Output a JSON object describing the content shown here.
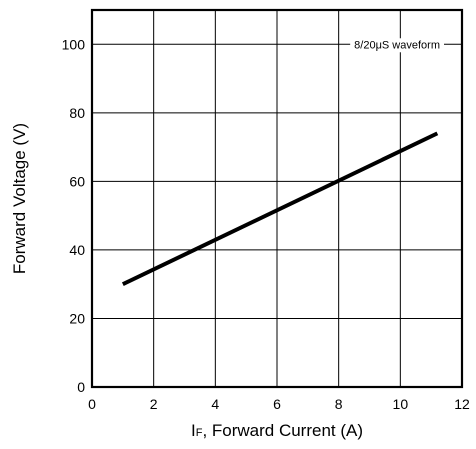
{
  "chart_data": {
    "type": "line",
    "title": "",
    "xlabel": "IF, Forward Current (A)",
    "xlabel_main": "I",
    "xlabel_sub": "F",
    "xlabel_rest": ", Forward Current (A)",
    "ylabel": "Forward Voltage (V)",
    "xlim": [
      0,
      12
    ],
    "ylim": [
      0,
      110
    ],
    "x_ticks": [
      0,
      2,
      4,
      6,
      8,
      10,
      12
    ],
    "y_ticks": [
      0,
      20,
      40,
      60,
      80,
      100
    ],
    "grid": true,
    "annotation": "8/20μS waveform",
    "series": [
      {
        "x": [
          1,
          11.2
        ],
        "y": [
          30,
          74
        ]
      }
    ]
  }
}
